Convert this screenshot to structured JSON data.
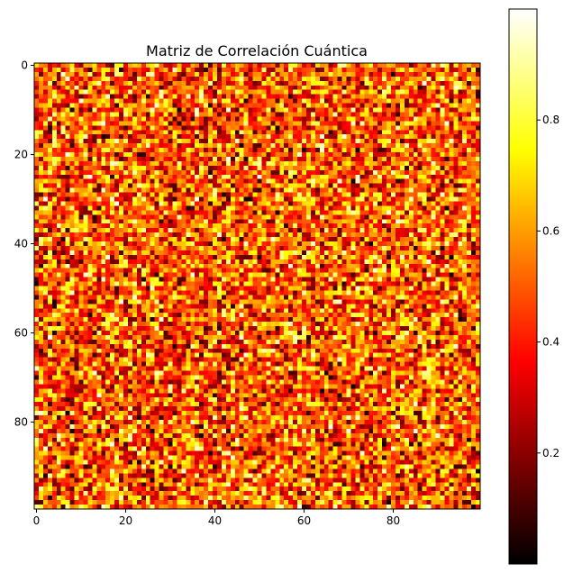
{
  "chart_data": {
    "type": "heatmap",
    "title": "Matriz de Correlación Cuántica",
    "colormap": "hot",
    "rows": 100,
    "cols": 100,
    "value_range": [
      0,
      1
    ],
    "distribution": "sum of two uniform random draws, rescaled to [0,1] (triangular)",
    "x_ticks": [
      0,
      20,
      40,
      60,
      80
    ],
    "x_tick_labels": [
      "0",
      "20",
      "40",
      "60",
      "80"
    ],
    "y_ticks": [
      0,
      20,
      40,
      60,
      80
    ],
    "y_tick_labels": [
      "0",
      "20",
      "40",
      "60",
      "80"
    ],
    "colorbar": {
      "ticks": [
        0.2,
        0.4,
        0.6,
        0.8
      ],
      "tick_labels": [
        "0.2",
        "0.4",
        "0.6",
        "0.8"
      ],
      "range": [
        0.0,
        1.0
      ],
      "placement": "right"
    },
    "grid": false,
    "xlabel": "",
    "ylabel": ""
  }
}
